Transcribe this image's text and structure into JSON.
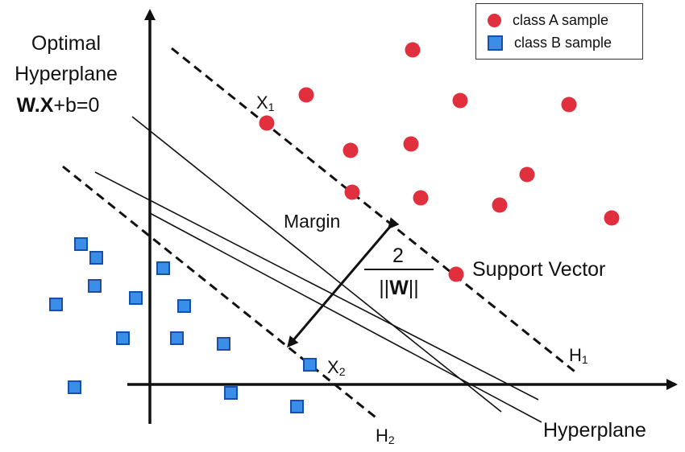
{
  "title": {
    "line1": "Optimal",
    "line2": "Hyperplane",
    "eq_bold": "W.X",
    "eq_rest": "+b=0"
  },
  "legend": {
    "class_a": "class A sample",
    "class_b": "class B sample"
  },
  "labels": {
    "x1_main": "X",
    "x1_sub": "1",
    "x2_main": "X",
    "x2_sub": "2",
    "h1_main": "H",
    "h1_sub": "1",
    "h2_main": "H",
    "h2_sub": "2",
    "margin": "Margin",
    "support_vector": "Support Vector",
    "hyperplane": "Hyperplane",
    "formula_num": "2",
    "formula_den_left": "||",
    "formula_den_w": "W",
    "formula_den_right": "||"
  },
  "colors": {
    "class_a": "#e0303e",
    "class_b": "#3b8ee8",
    "class_b_border": "#1a4fa8",
    "line": "#111111"
  }
}
